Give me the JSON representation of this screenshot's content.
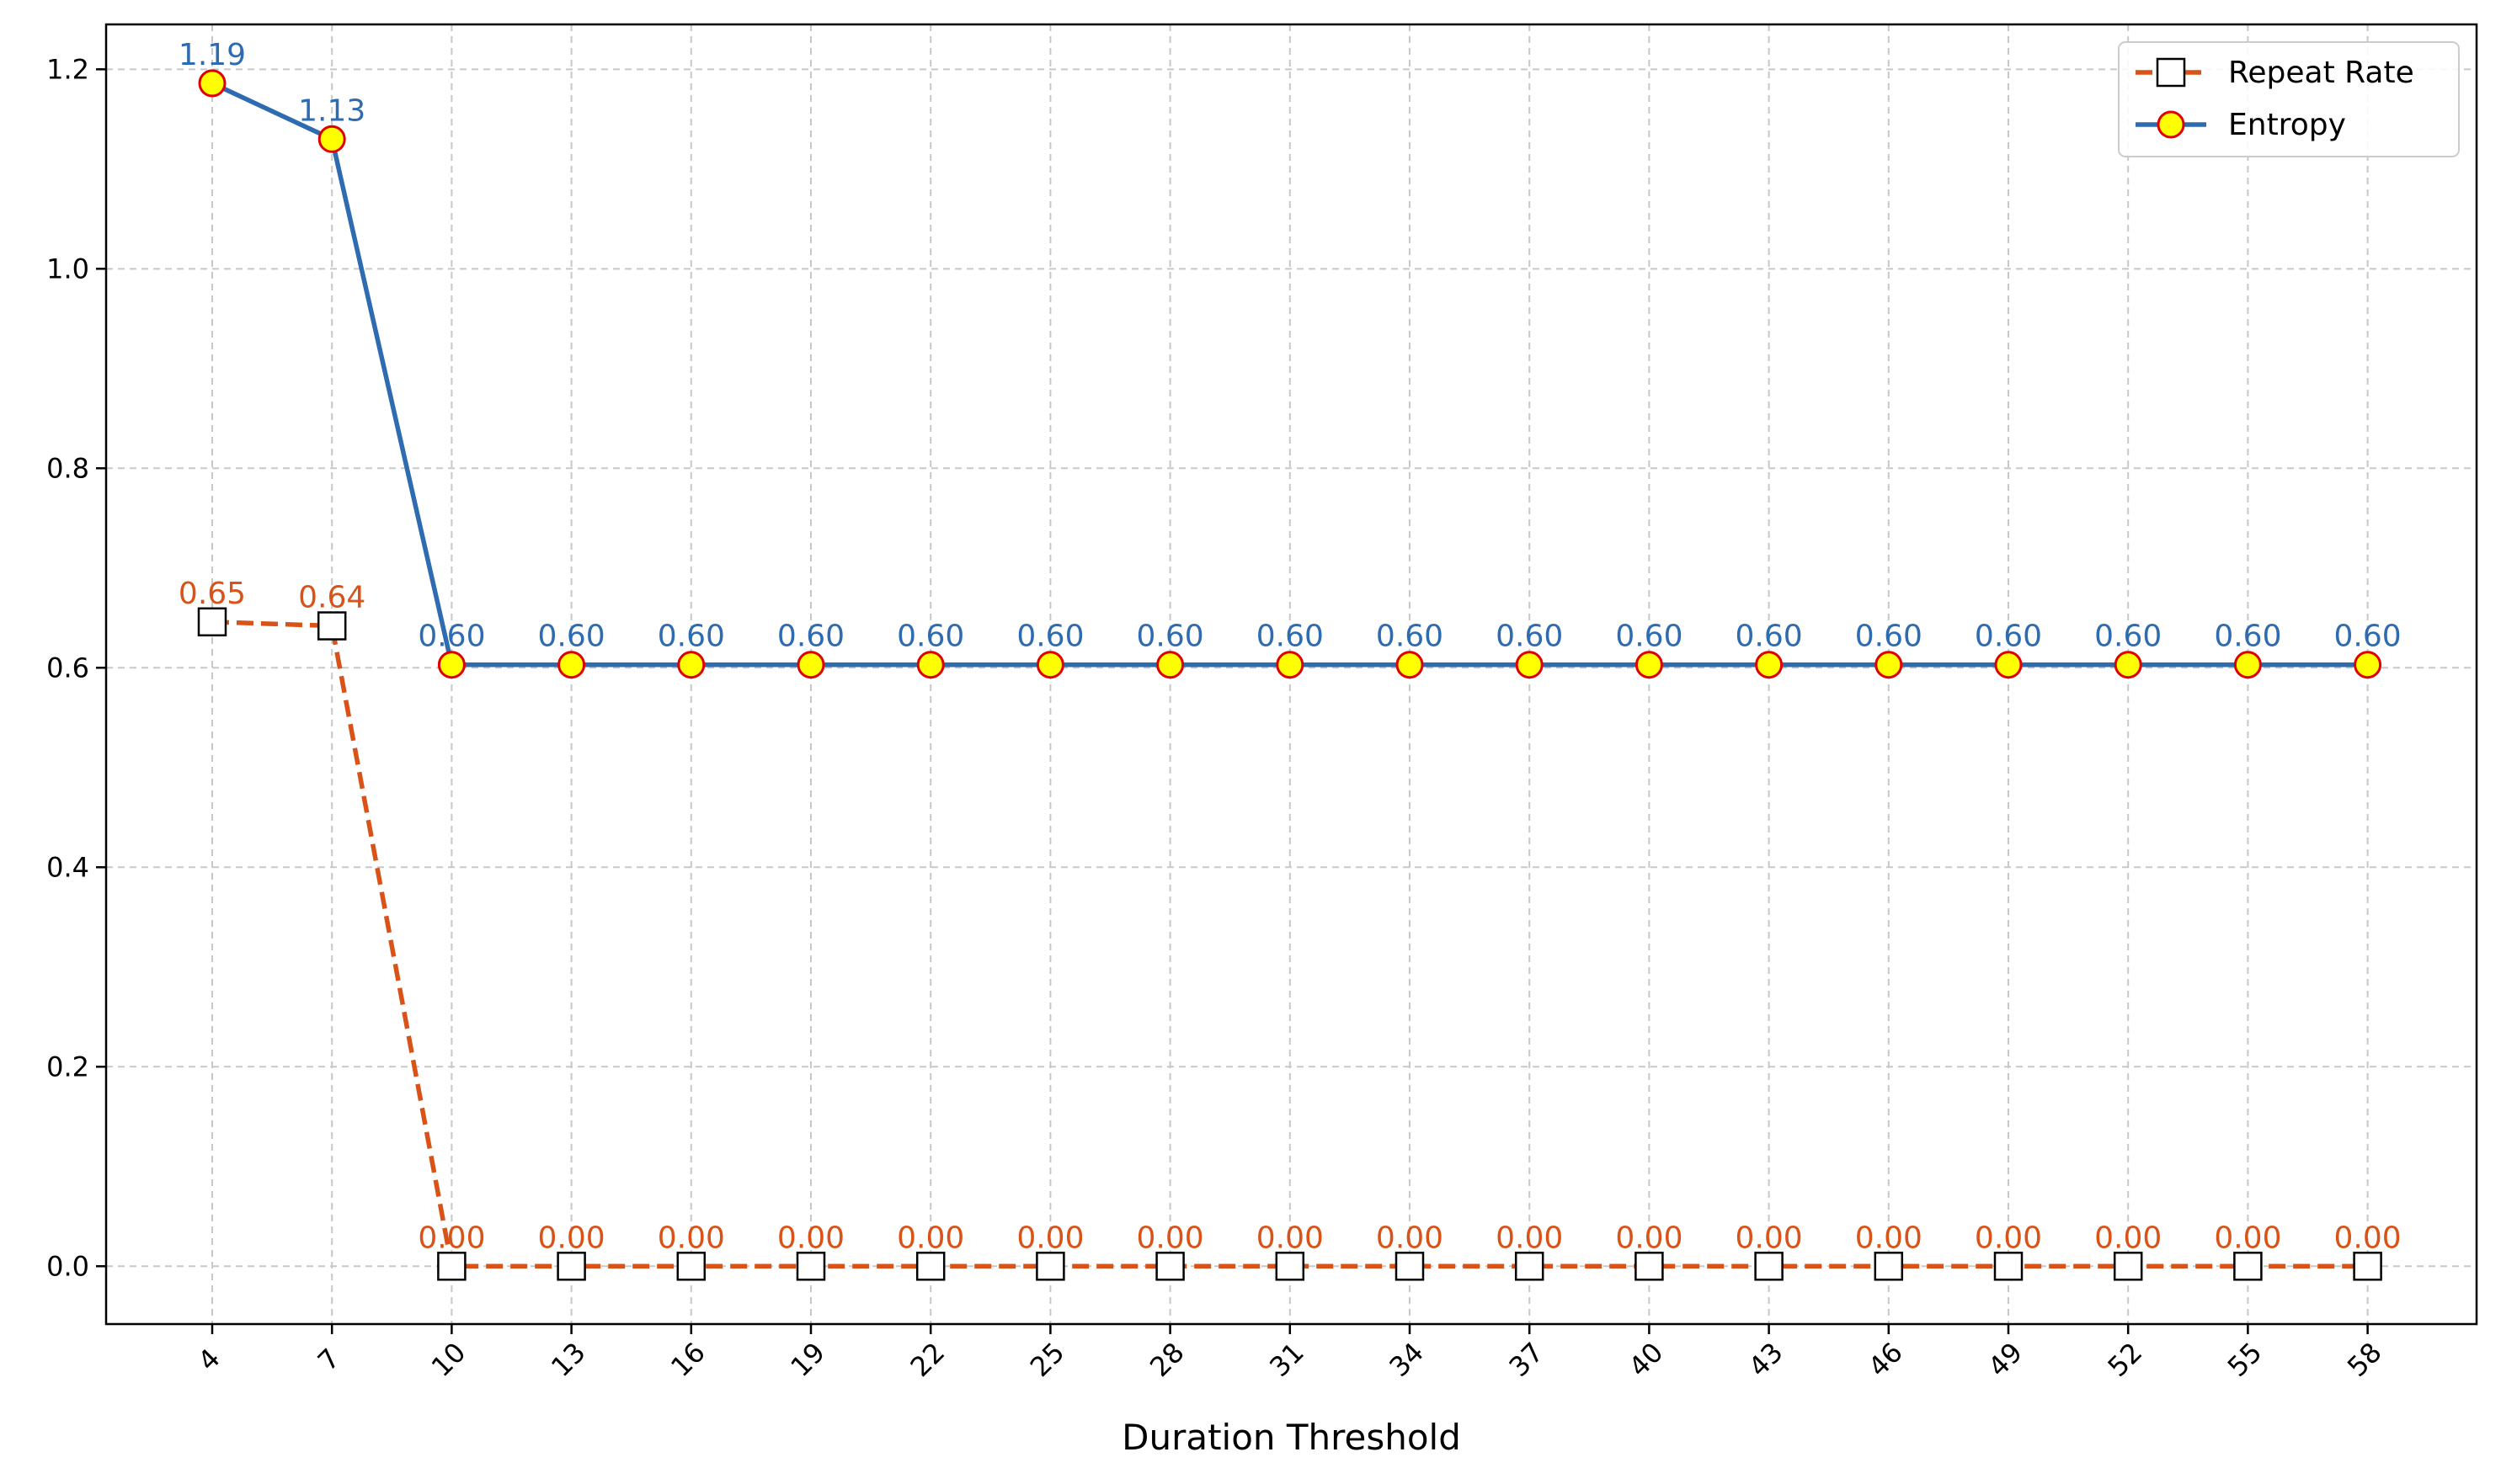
{
  "chart_data": {
    "type": "line",
    "title": "",
    "xlabel": "Duration Threshold",
    "ylabel": "",
    "x": [
      4,
      7,
      10,
      13,
      16,
      19,
      22,
      25,
      28,
      31,
      34,
      37,
      40,
      43,
      46,
      49,
      52,
      55,
      58
    ],
    "yticks": [
      0.0,
      0.2,
      0.4,
      0.6,
      0.8,
      1.0,
      1.2
    ],
    "ytick_labels": [
      "0.0",
      "0.2",
      "0.4",
      "0.6",
      "0.8",
      "1.0",
      "1.2"
    ],
    "ylim": [
      -0.058,
      1.245
    ],
    "grid": true,
    "legend_position": "upper-right",
    "series": [
      {
        "name": "Repeat Rate",
        "values": [
          0.646,
          0.642,
          0,
          0,
          0,
          0,
          0,
          0,
          0,
          0,
          0,
          0,
          0,
          0,
          0,
          0,
          0,
          0,
          0
        ],
        "labels": [
          "0.65",
          "0.64",
          "0.00",
          "0.00",
          "0.00",
          "0.00",
          "0.00",
          "0.00",
          "0.00",
          "0.00",
          "0.00",
          "0.00",
          "0.00",
          "0.00",
          "0.00",
          "0.00",
          "0.00",
          "0.00",
          "0.00"
        ],
        "color": "#d95319",
        "marker": "square",
        "marker_fill": "#ffffff",
        "marker_edge": "#000000",
        "line_style": "dashed"
      },
      {
        "name": "Entropy",
        "values": [
          1.186,
          1.13,
          0.603,
          0.603,
          0.603,
          0.603,
          0.603,
          0.603,
          0.603,
          0.603,
          0.603,
          0.603,
          0.603,
          0.603,
          0.603,
          0.603,
          0.603,
          0.603,
          0.603
        ],
        "labels": [
          "1.19",
          "1.13",
          "0.60",
          "0.60",
          "0.60",
          "0.60",
          "0.60",
          "0.60",
          "0.60",
          "0.60",
          "0.60",
          "0.60",
          "0.60",
          "0.60",
          "0.60",
          "0.60",
          "0.60",
          "0.60",
          "0.60"
        ],
        "color": "#2e6bb0",
        "marker": "circle",
        "marker_fill": "#ffff00",
        "marker_edge": "#e00000",
        "line_style": "solid"
      }
    ]
  }
}
